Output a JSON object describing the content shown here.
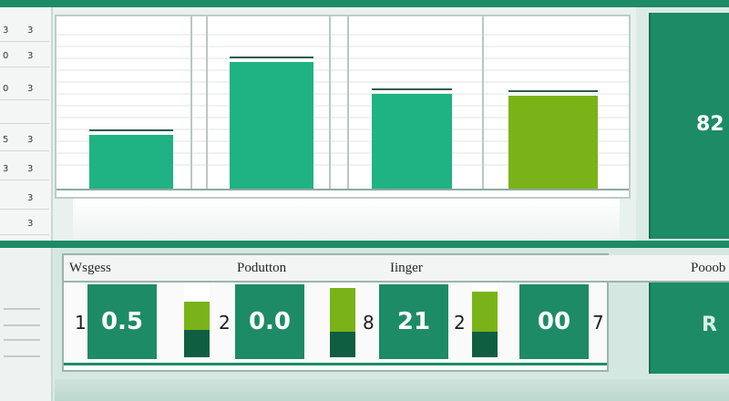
{
  "left_panel": {
    "rows": [
      {
        "a": "3",
        "b": "3"
      },
      {
        "a": "0",
        "b": "3"
      },
      {
        "a": "0",
        "b": "3"
      },
      {
        "a": "",
        "b": ""
      },
      {
        "a": "5",
        "b": "3"
      },
      {
        "a": "3",
        "b": "3"
      },
      {
        "a": "",
        "b": "3"
      },
      {
        "a": "",
        "b": "3"
      }
    ]
  },
  "chart_data": {
    "type": "bar",
    "categories": [
      "",
      "",
      "",
      ""
    ],
    "values": [
      60,
      140,
      105,
      103
    ],
    "ylim": [
      0,
      188
    ],
    "colors": [
      "#1fb283",
      "#1fb283",
      "#1fb283",
      "#7ab317"
    ],
    "grid": true
  },
  "kpi_top": {
    "value": "82"
  },
  "metrics": {
    "headers": [
      "Wsgess",
      "Podutton",
      "Iinger",
      "Pooob"
    ],
    "tiles": [
      {
        "index": "1",
        "value": "0.5",
        "stack": {
          "top": 0.12,
          "light": 0.38,
          "dark": 0.38
        }
      },
      {
        "index": "2",
        "value": "0.0",
        "stack": {
          "top": 0.0,
          "light": 0.6,
          "dark": 0.35
        }
      },
      {
        "index": "8",
        "value": "21",
        "stack": {
          "top": 0.0,
          "light": 0.55,
          "dark": 0.35
        }
      },
      {
        "index": "2",
        "value": "00",
        "stack": {
          "top": 0.0,
          "light": 0.7,
          "dark": 0.3
        }
      }
    ],
    "trailing_index": "7"
  },
  "kpi_bottom": {
    "value": "R"
  },
  "colors": {
    "primary_green": "#1d8b66",
    "bar_green": "#1fb283",
    "bar_lime": "#7ab317",
    "dark_green": "#0f5e42"
  }
}
